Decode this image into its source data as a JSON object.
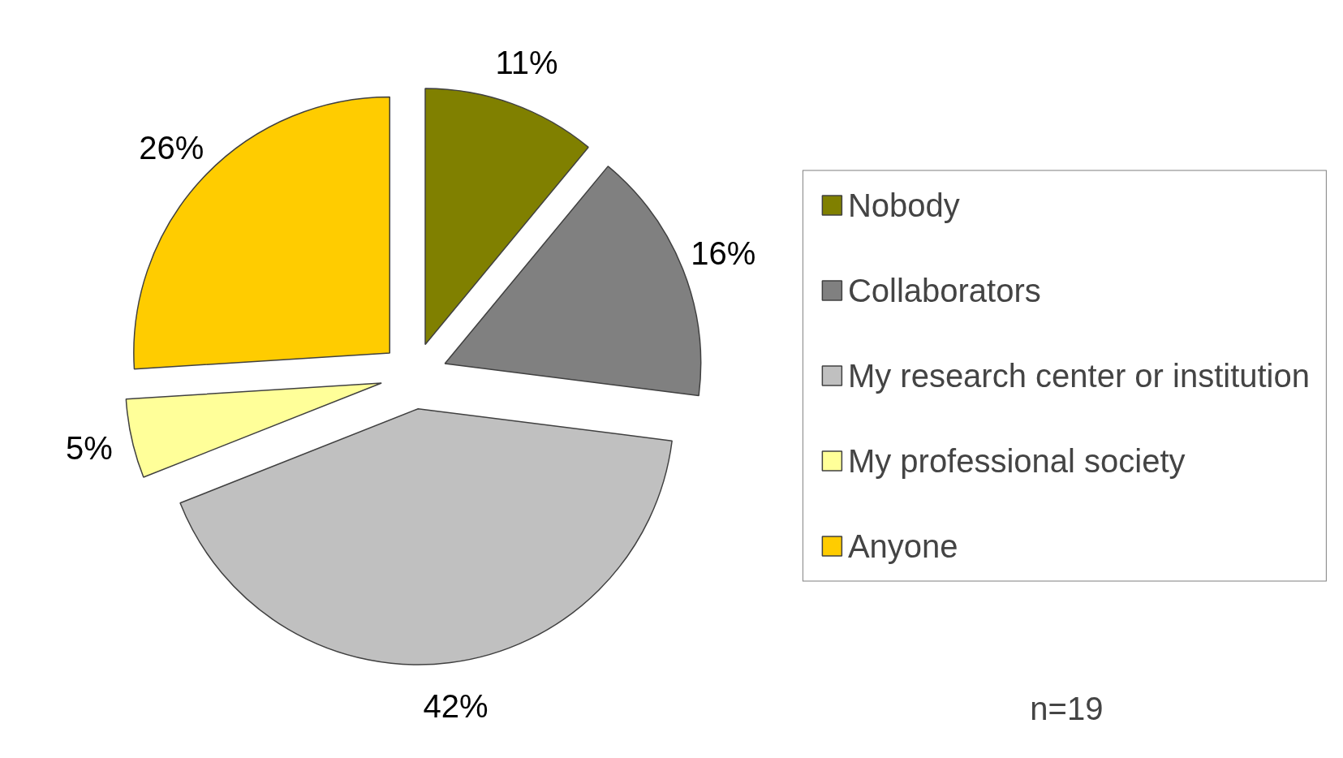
{
  "chart_data": {
    "type": "pie",
    "categories": [
      "Nobody",
      "Collaborators",
      "My research center or institution",
      "My professional society",
      "Anyone"
    ],
    "values": [
      11,
      16,
      42,
      5,
      26
    ],
    "colors": [
      "#808000",
      "#808080",
      "#c0c0c0",
      "#ffff99",
      "#ffcc00"
    ],
    "value_labels": [
      "11%",
      "16%",
      "42%",
      "5%",
      "26%"
    ],
    "legend": "right",
    "annotations": [
      "n=19"
    ]
  }
}
